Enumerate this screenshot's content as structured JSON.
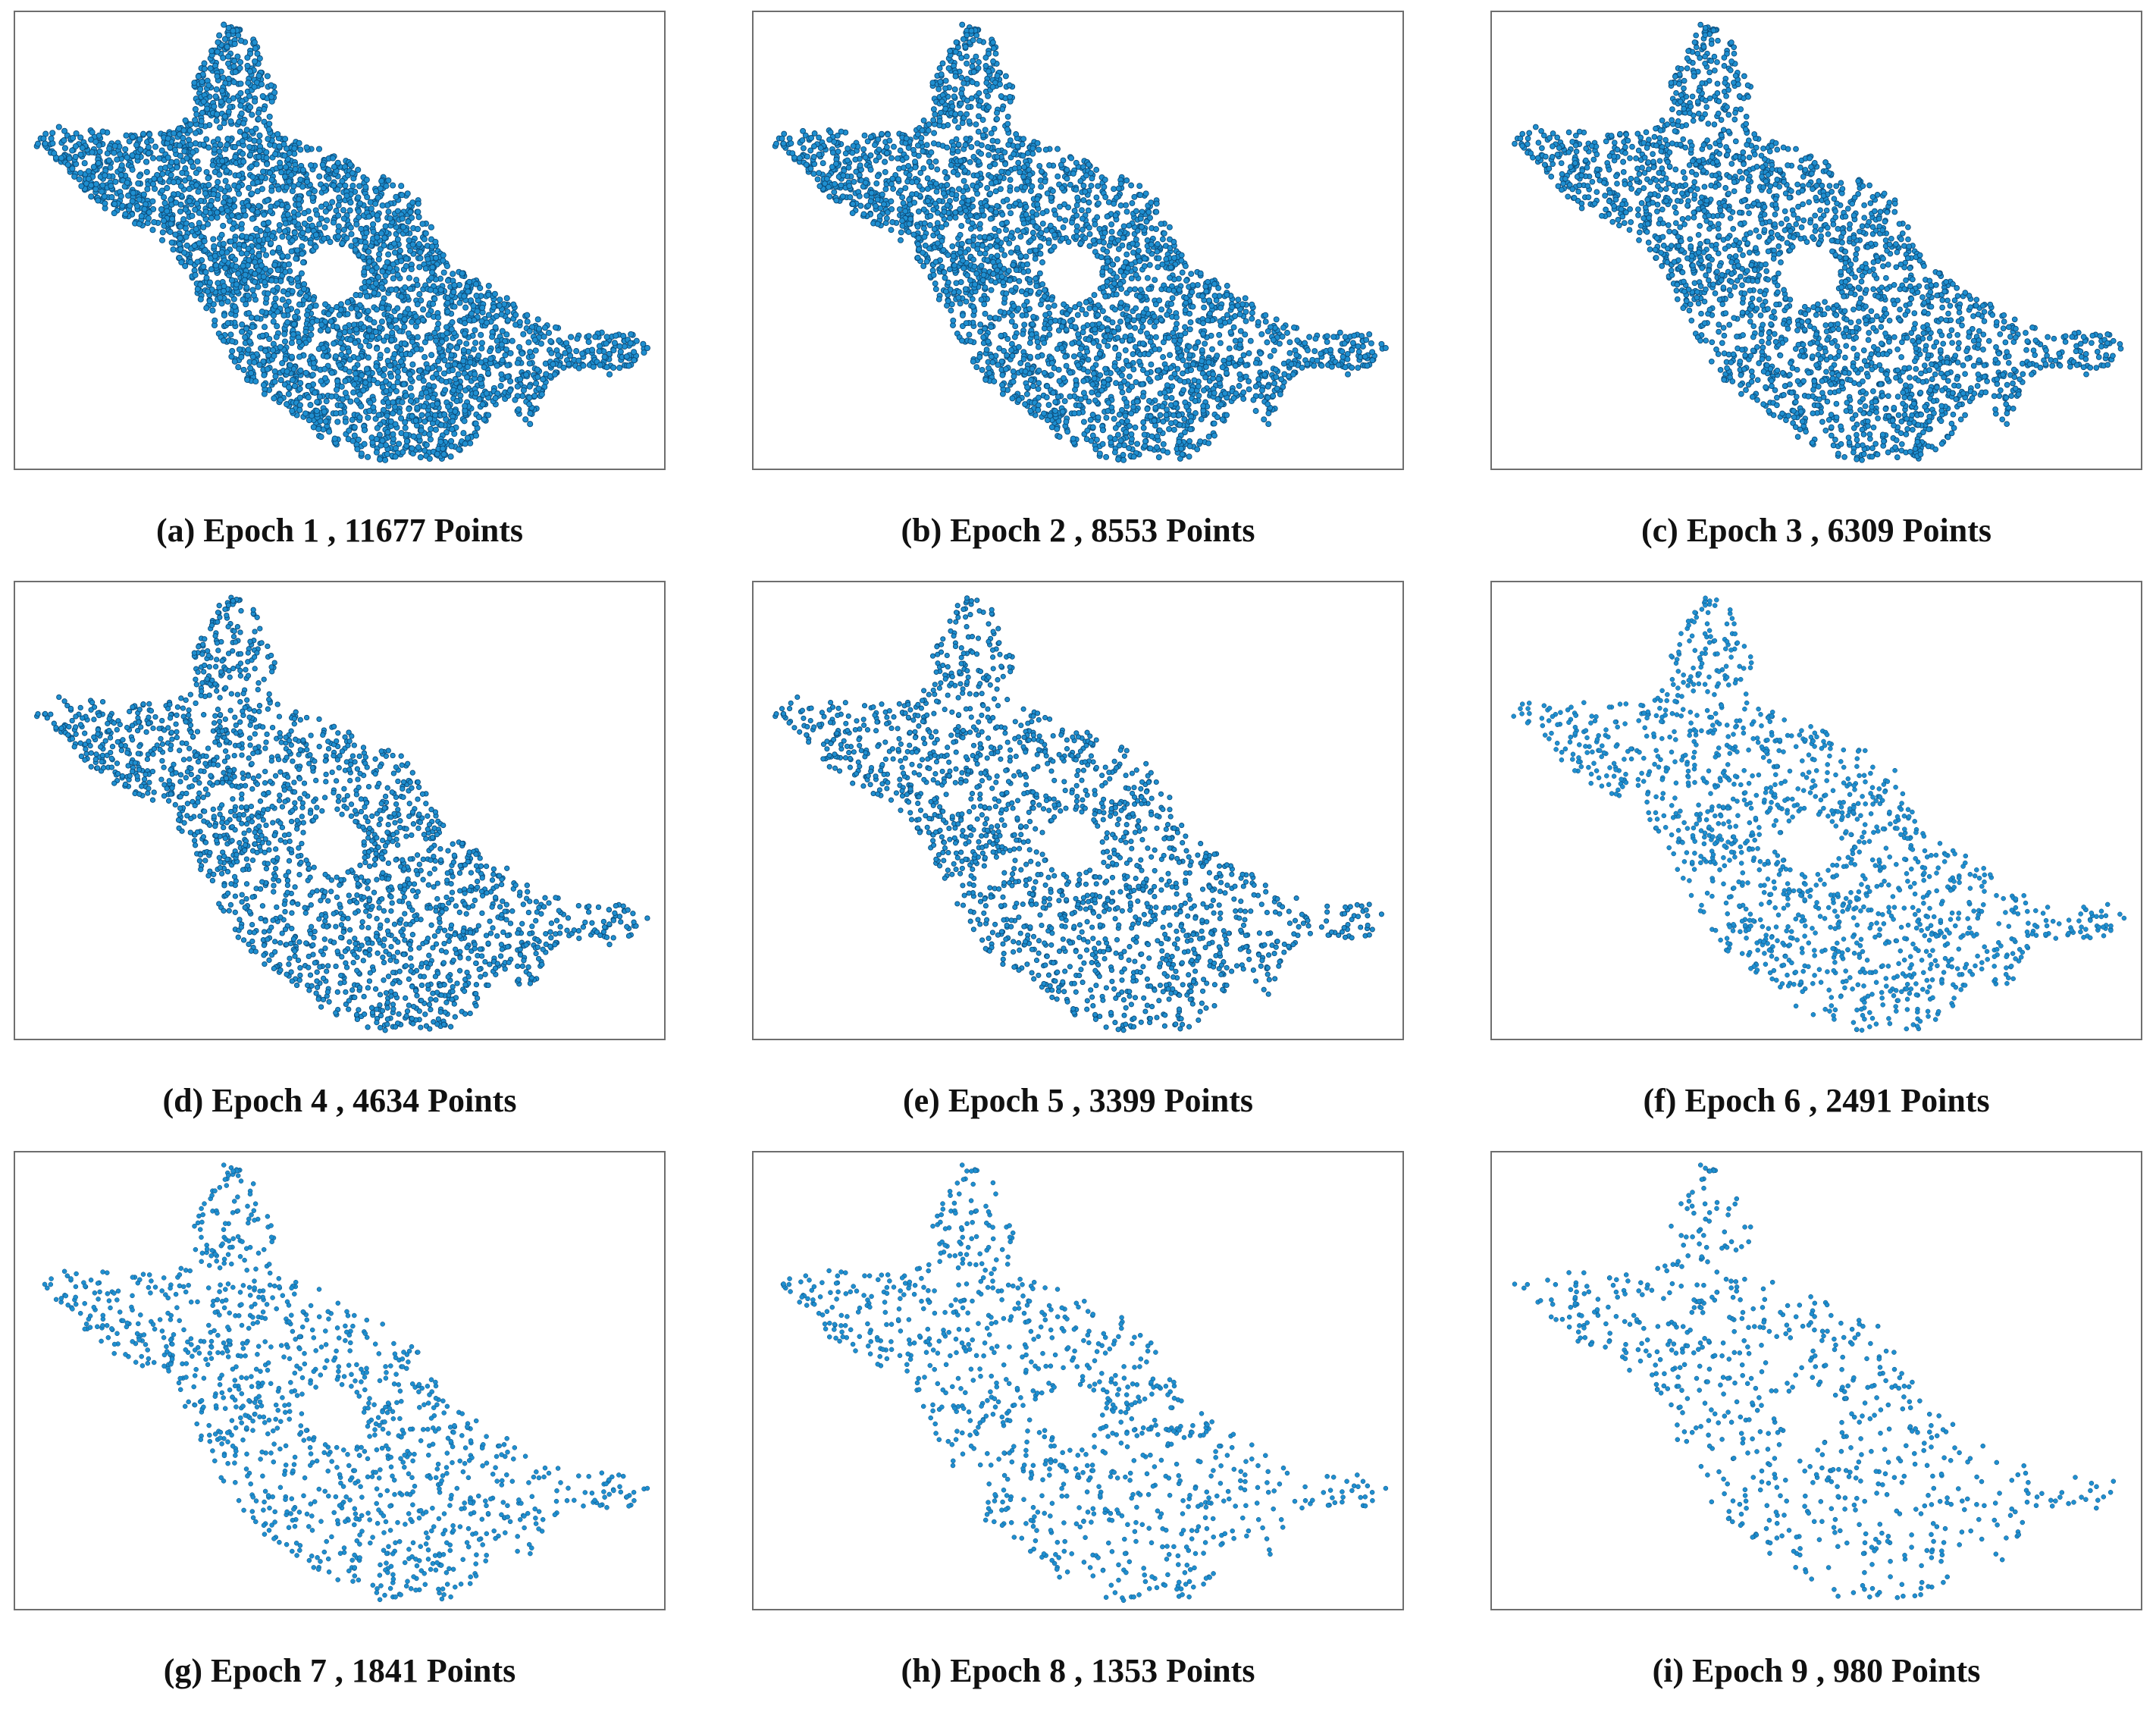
{
  "colors": {
    "point_fill": "#1f8fd0",
    "point_edge": "#0b4a78",
    "frame": "#6e6e6e",
    "caption": "#111111"
  },
  "chart_data": [
    {
      "type": "scatter",
      "label": "(a) Epoch 1 , 11677 Points",
      "epoch": 1,
      "points": 11677
    },
    {
      "type": "scatter",
      "label": "(b) Epoch 2 , 8553 Points",
      "epoch": 2,
      "points": 8553
    },
    {
      "type": "scatter",
      "label": "(c) Epoch 3 , 6309 Points",
      "epoch": 3,
      "points": 6309
    },
    {
      "type": "scatter",
      "label": "(d) Epoch 4 , 4634 Points",
      "epoch": 4,
      "points": 4634
    },
    {
      "type": "scatter",
      "label": "(e) Epoch 5 , 3399 Points",
      "epoch": 5,
      "points": 3399
    },
    {
      "type": "scatter",
      "label": "(f) Epoch 6 , 2491 Points",
      "epoch": 6,
      "points": 2491
    },
    {
      "type": "scatter",
      "label": "(g) Epoch 7 , 1841 Points",
      "epoch": 7,
      "points": 1841
    },
    {
      "type": "scatter",
      "label": "(h) Epoch 8 , 1353 Points",
      "epoch": 8,
      "points": 1353
    },
    {
      "type": "scatter",
      "label": "(i) Epoch 9 , 980 Points",
      "epoch": 9,
      "points": 980
    }
  ]
}
